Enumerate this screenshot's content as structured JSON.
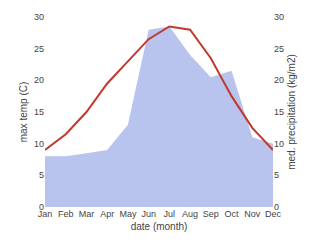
{
  "chart_data": {
    "type": "line",
    "categories": [
      "Jan",
      "Feb",
      "Mar",
      "Apr",
      "May",
      "Jun",
      "Jul",
      "Aug",
      "Sep",
      "Oct",
      "Nov",
      "Dec"
    ],
    "series": [
      {
        "type": "area",
        "color": "#b8c4ee",
        "axis": "y2",
        "values": [
          8.0,
          8.0,
          8.5,
          9.0,
          13.0,
          28.0,
          28.5,
          24.0,
          20.5,
          21.5,
          11.0,
          10.0
        ]
      },
      {
        "type": "line",
        "color": "#c0392b",
        "values": [
          9.0,
          11.5,
          15.0,
          19.5,
          23.0,
          26.5,
          28.5,
          28.0,
          23.5,
          17.5,
          12.5,
          9.0
        ]
      }
    ],
    "xlabel": "date (month)",
    "ylabel": "max temp (C)",
    "y2label": "med. precipitation (kg/m2)",
    "ylim": [
      0,
      30
    ],
    "yticks": [
      0,
      5,
      10,
      15,
      20,
      25,
      30
    ],
    "y2lim": [
      0,
      30
    ],
    "y2ticks": [
      0,
      5,
      10,
      15,
      20,
      25,
      30
    ],
    "grid": false
  }
}
